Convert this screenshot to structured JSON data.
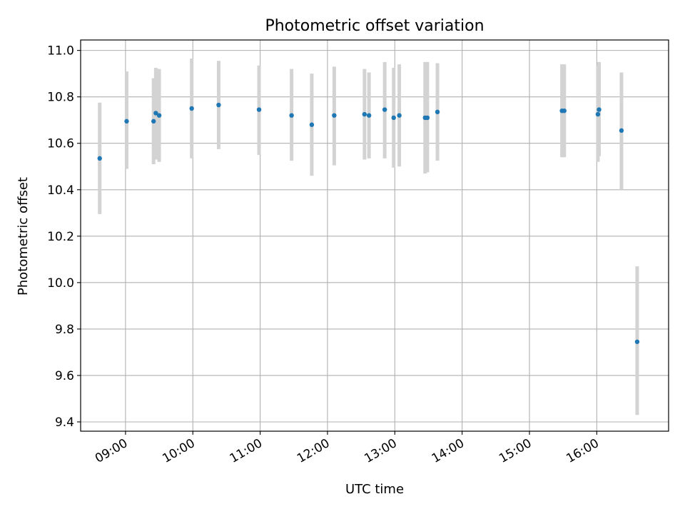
{
  "chart_data": {
    "type": "scatter",
    "title": "Photometric offset variation",
    "xlabel": "UTC time",
    "ylabel": "Photometric offset",
    "xlim": [
      "08:20",
      "17:04"
    ],
    "ylim": [
      9.36,
      11.045
    ],
    "x_ticks": [
      "09:00",
      "10:00",
      "11:00",
      "12:00",
      "13:00",
      "14:00",
      "15:00",
      "16:00"
    ],
    "y_ticks": [
      9.4,
      9.6,
      9.8,
      10.0,
      10.2,
      10.4,
      10.6,
      10.8,
      11.0
    ],
    "grid": true,
    "marker_color": "#1f77b4",
    "errorbar_color": "#d3d3d3",
    "points": [
      {
        "time": "08:37",
        "y": 10.535,
        "lo": 10.295,
        "hi": 10.775
      },
      {
        "time": "09:01",
        "y": 10.695,
        "lo": 10.49,
        "hi": 10.91
      },
      {
        "time": "09:25",
        "y": 10.695,
        "lo": 10.51,
        "hi": 10.88
      },
      {
        "time": "09:27",
        "y": 10.73,
        "lo": 10.53,
        "hi": 10.925
      },
      {
        "time": "09:30",
        "y": 10.72,
        "lo": 10.52,
        "hi": 10.92
      },
      {
        "time": "09:59",
        "y": 10.75,
        "lo": 10.535,
        "hi": 10.965
      },
      {
        "time": "10:23",
        "y": 10.765,
        "lo": 10.575,
        "hi": 10.955
      },
      {
        "time": "10:59",
        "y": 10.745,
        "lo": 10.55,
        "hi": 10.935
      },
      {
        "time": "11:28",
        "y": 10.72,
        "lo": 10.525,
        "hi": 10.92
      },
      {
        "time": "11:46",
        "y": 10.68,
        "lo": 10.46,
        "hi": 10.9
      },
      {
        "time": "12:06",
        "y": 10.72,
        "lo": 10.505,
        "hi": 10.93
      },
      {
        "time": "12:33",
        "y": 10.725,
        "lo": 10.53,
        "hi": 10.92
      },
      {
        "time": "12:37",
        "y": 10.72,
        "lo": 10.535,
        "hi": 10.905
      },
      {
        "time": "12:51",
        "y": 10.745,
        "lo": 10.535,
        "hi": 10.95
      },
      {
        "time": "12:59",
        "y": 10.71,
        "lo": 10.495,
        "hi": 10.925
      },
      {
        "time": "13:04",
        "y": 10.72,
        "lo": 10.5,
        "hi": 10.94
      },
      {
        "time": "13:27",
        "y": 10.71,
        "lo": 10.47,
        "hi": 10.95
      },
      {
        "time": "13:29",
        "y": 10.71,
        "lo": 10.475,
        "hi": 10.95
      },
      {
        "time": "13:38",
        "y": 10.735,
        "lo": 10.525,
        "hi": 10.945
      },
      {
        "time": "15:29",
        "y": 10.74,
        "lo": 10.54,
        "hi": 10.94
      },
      {
        "time": "15:31",
        "y": 10.74,
        "lo": 10.54,
        "hi": 10.94
      },
      {
        "time": "16:01",
        "y": 10.725,
        "lo": 10.52,
        "hi": 10.935
      },
      {
        "time": "16:02",
        "y": 10.745,
        "lo": 10.545,
        "hi": 10.95
      },
      {
        "time": "16:22",
        "y": 10.655,
        "lo": 10.4,
        "hi": 10.905
      },
      {
        "time": "16:36",
        "y": 9.745,
        "lo": 9.43,
        "hi": 10.07
      }
    ]
  }
}
